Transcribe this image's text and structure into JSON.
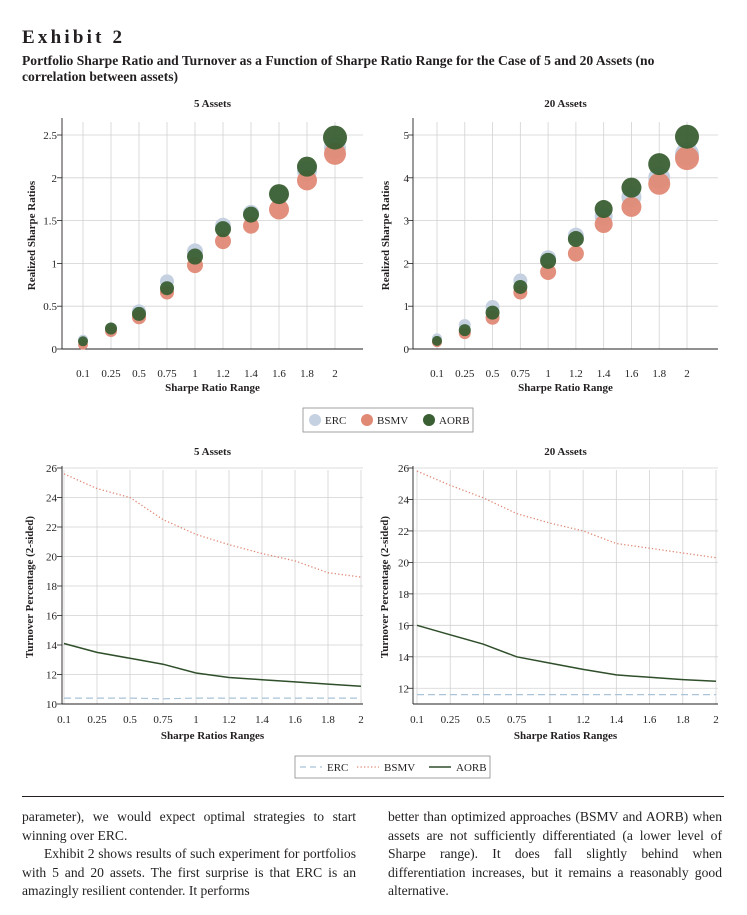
{
  "exhibit": {
    "label": "Exhibit 2",
    "title": "Portfolio Sharpe Ratio and Turnover as a Function of Sharpe Ratio Range for the Case of 5 and 20 Assets (no correlation between assets)"
  },
  "colors": {
    "ERC": "#c5d1e1",
    "BSMV": "#e08a76",
    "AORB": "#3a5f33",
    "grid": "#d2d2d2",
    "axis": "#231f20"
  },
  "legend_top": [
    {
      "name": "ERC",
      "marker": "circle"
    },
    {
      "name": "BSMV",
      "marker": "circle"
    },
    {
      "name": "AORB",
      "marker": "circle"
    }
  ],
  "legend_bottom": [
    {
      "name": "ERC",
      "marker": "dashed-line"
    },
    {
      "name": "BSMV",
      "marker": "dotted-line"
    },
    {
      "name": "AORB",
      "marker": "solid-line"
    }
  ],
  "chart_data": [
    {
      "type": "scatter",
      "title": "5 Assets",
      "xlabel": "Sharpe Ratio Range",
      "ylabel": "Realized Sharpe Ratios",
      "categories": [
        "0.1",
        "0.25",
        "0.5",
        "0.75",
        "1",
        "1.2",
        "1.4",
        "1.6",
        "1.8",
        "2"
      ],
      "ylim": [
        0,
        2.5
      ],
      "yticks": [
        {
          "v": 0,
          "label": "0"
        },
        {
          "v": 0.5,
          "label": "0.5"
        },
        {
          "v": 1,
          "label": "1"
        },
        {
          "v": 1.5,
          "label": "1.5"
        },
        {
          "v": 2,
          "label": "2"
        },
        {
          "v": 2.5,
          "label": "2.5"
        }
      ],
      "grid": true,
      "series": [
        {
          "name": "ERC",
          "values": [
            0.11,
            0.24,
            0.44,
            0.79,
            1.14,
            1.44,
            1.59,
            1.81,
            2.08,
            2.35
          ],
          "sizes": [
            5,
            6,
            7,
            7,
            8,
            8,
            8,
            9,
            10,
            11
          ]
        },
        {
          "name": "BSMV",
          "values": [
            0.05,
            0.21,
            0.37,
            0.66,
            0.98,
            1.26,
            1.44,
            1.63,
            1.97,
            2.28
          ],
          "sizes": [
            5,
            6,
            7,
            7,
            8,
            8,
            8,
            10,
            10,
            11
          ]
        },
        {
          "name": "AORB",
          "values": [
            0.09,
            0.24,
            0.41,
            0.71,
            1.08,
            1.4,
            1.57,
            1.81,
            2.13,
            2.47
          ],
          "sizes": [
            5,
            6,
            7,
            7,
            8,
            8,
            8,
            10,
            10,
            12
          ]
        }
      ]
    },
    {
      "type": "scatter",
      "title": "20 Assets",
      "xlabel": "Sharpe Ratio Range",
      "ylabel": "Realized Sharpe Ratios",
      "categories": [
        "0.1",
        "0.25",
        "0.5",
        "0.75",
        "1",
        "1.2",
        "1.4",
        "1.6",
        "1.8",
        "2"
      ],
      "ylim": [
        0,
        5
      ],
      "yticks": [
        {
          "v": 0,
          "label": "0"
        },
        {
          "v": 1,
          "label": "1"
        },
        {
          "v": 2,
          "label": "2"
        },
        {
          "v": 3,
          "label": "3"
        },
        {
          "v": 4,
          "label": "4"
        },
        {
          "v": 5,
          "label": "5"
        }
      ],
      "grid": true,
      "series": [
        {
          "name": "ERC",
          "values": [
            0.25,
            0.56,
            0.98,
            1.6,
            2.12,
            2.65,
            3.1,
            3.55,
            4.0,
            4.55
          ],
          "sizes": [
            5,
            6,
            7,
            7,
            8,
            8,
            9,
            10,
            11,
            12
          ]
        },
        {
          "name": "BSMV",
          "values": [
            0.16,
            0.37,
            0.73,
            1.32,
            1.8,
            2.23,
            2.92,
            3.32,
            3.86,
            4.46
          ],
          "sizes": [
            5,
            6,
            7,
            7,
            8,
            8,
            9,
            10,
            11,
            12
          ]
        },
        {
          "name": "AORB",
          "values": [
            0.19,
            0.44,
            0.85,
            1.45,
            2.06,
            2.57,
            3.27,
            3.77,
            4.32,
            4.96
          ],
          "sizes": [
            5,
            6,
            7,
            7,
            8,
            8,
            9,
            10,
            11,
            12
          ]
        }
      ]
    },
    {
      "type": "line",
      "title": "5 Assets",
      "xlabel": "Sharpe Ratios Ranges",
      "ylabel": "Turnover Percentage (2-sided)",
      "categories": [
        "0.1",
        "0.25",
        "0.5",
        "0.75",
        "1",
        "1.2",
        "1.4",
        "1.6",
        "1.8",
        "2"
      ],
      "ylim": [
        10,
        26
      ],
      "yticks": [
        {
          "v": 10,
          "label": "10"
        },
        {
          "v": 12,
          "label": "12"
        },
        {
          "v": 14,
          "label": "14"
        },
        {
          "v": 16,
          "label": "16"
        },
        {
          "v": 18,
          "label": "18"
        },
        {
          "v": 20,
          "label": "20"
        },
        {
          "v": 22,
          "label": "22"
        },
        {
          "v": 24,
          "label": "24"
        },
        {
          "v": 26,
          "label": "26"
        }
      ],
      "grid": true,
      "series": [
        {
          "name": "ERC",
          "style": "dashed",
          "values": [
            10.4,
            10.4,
            10.4,
            10.35,
            10.4,
            10.4,
            10.4,
            10.4,
            10.4,
            10.4
          ]
        },
        {
          "name": "BSMV",
          "style": "dotted",
          "values": [
            25.6,
            24.6,
            24.0,
            22.5,
            21.5,
            20.8,
            20.2,
            19.7,
            18.9,
            18.6
          ]
        },
        {
          "name": "AORB",
          "style": "solid",
          "values": [
            14.1,
            13.5,
            13.1,
            12.7,
            12.1,
            11.8,
            11.65,
            11.5,
            11.35,
            11.2
          ]
        }
      ]
    },
    {
      "type": "line",
      "title": "20 Assets",
      "xlabel": "Sharpe Ratios Ranges",
      "ylabel": "Turnover Percentage (2-sided)",
      "categories": [
        "0.1",
        "0.25",
        "0.5",
        "0.75",
        "1",
        "1.2",
        "1.4",
        "1.6",
        "1.8",
        "2"
      ],
      "ylim": [
        11,
        26
      ],
      "yticks": [
        {
          "v": 12,
          "label": "12"
        },
        {
          "v": 14,
          "label": "14"
        },
        {
          "v": 16,
          "label": "16"
        },
        {
          "v": 18,
          "label": "18"
        },
        {
          "v": 20,
          "label": "20"
        },
        {
          "v": 22,
          "label": "22"
        },
        {
          "v": 24,
          "label": "24"
        },
        {
          "v": 26,
          "label": "26"
        }
      ],
      "grid": true,
      "series": [
        {
          "name": "ERC",
          "style": "dashed",
          "values": [
            11.6,
            11.6,
            11.6,
            11.6,
            11.6,
            11.6,
            11.6,
            11.6,
            11.6,
            11.6
          ]
        },
        {
          "name": "BSMV",
          "style": "dotted",
          "values": [
            25.8,
            24.9,
            24.1,
            23.1,
            22.5,
            22.0,
            21.2,
            20.9,
            20.6,
            20.3
          ]
        },
        {
          "name": "AORB",
          "style": "solid",
          "values": [
            16.0,
            15.4,
            14.8,
            14.0,
            13.6,
            13.2,
            12.85,
            12.7,
            12.55,
            12.45
          ]
        }
      ]
    }
  ],
  "body_text": {
    "left_p1": "parameter), we would expect optimal strategies to start winning over ERC.",
    "left_p2": "Exhibit 2 shows results of such experiment for portfolios with 5 and 20 assets. The first surprise is that ERC is an amazingly resilient contender. It performs",
    "right_p1": "better than optimized approaches (BSMV and AORB) when assets are not sufficiently differentiated (a lower level of Sharpe range). It does fall slightly behind when differentiation increases, but it remains a reasonably good alternative."
  }
}
